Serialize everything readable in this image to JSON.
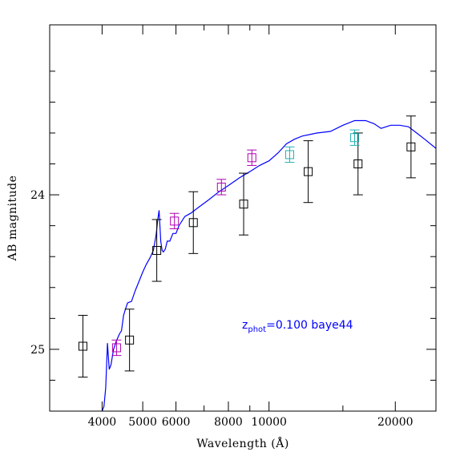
{
  "chart_data": {
    "type": "scatter",
    "title": "",
    "xlabel": "Wavelength (Å)",
    "ylabel": "AB magnitude",
    "x_scale": "log",
    "y_inverted": true,
    "xlim": [
      3000,
      25000
    ],
    "ylim": [
      25.4,
      22.9
    ],
    "x_tick_labels": [
      "4000",
      "5000",
      "6000",
      "8000",
      "10000",
      "20000"
    ],
    "x_tick_values": [
      4000,
      5000,
      6000,
      8000,
      10000,
      20000
    ],
    "x_minor_ticks": [
      3000,
      7000,
      9000,
      15000
    ],
    "y_tick_labels": [
      "24",
      "25"
    ],
    "y_tick_values": [
      24,
      25
    ],
    "y_minor_ticks": [
      23.2,
      23.4,
      23.6,
      23.8,
      24.2,
      24.4,
      24.6,
      24.8,
      25.2
    ],
    "grid": false,
    "annotation": {
      "z_symbol": "z",
      "subscript": "phot",
      "text": "=0.100 baye44",
      "color": "#0000ff"
    },
    "series": [
      {
        "kind": "model",
        "color": "#0000ff",
        "points": [
          [
            3900,
            25.49
          ],
          [
            3960,
            25.42
          ],
          [
            4000,
            25.4
          ],
          [
            4040,
            25.37
          ],
          [
            4080,
            25.25
          ],
          [
            4120,
            24.96
          ],
          [
            4160,
            25.13
          ],
          [
            4200,
            25.1
          ],
          [
            4260,
            25.0
          ],
          [
            4320,
            24.95
          ],
          [
            4400,
            24.9
          ],
          [
            4450,
            24.88
          ],
          [
            4500,
            24.78
          ],
          [
            4560,
            24.73
          ],
          [
            4600,
            24.7
          ],
          [
            4700,
            24.69
          ],
          [
            4800,
            24.62
          ],
          [
            4900,
            24.56
          ],
          [
            5000,
            24.5
          ],
          [
            5100,
            24.45
          ],
          [
            5200,
            24.41
          ],
          [
            5300,
            24.36
          ],
          [
            5380,
            24.26
          ],
          [
            5430,
            24.16
          ],
          [
            5470,
            24.1
          ],
          [
            5520,
            24.3
          ],
          [
            5560,
            24.36
          ],
          [
            5600,
            24.37
          ],
          [
            5660,
            24.35
          ],
          [
            5720,
            24.3
          ],
          [
            5800,
            24.3
          ],
          [
            5900,
            24.25
          ],
          [
            6000,
            24.25
          ],
          [
            6100,
            24.2
          ],
          [
            6300,
            24.14
          ],
          [
            6500,
            24.12
          ],
          [
            6800,
            24.08
          ],
          [
            7200,
            24.03
          ],
          [
            7600,
            23.98
          ],
          [
            8000,
            23.94
          ],
          [
            8500,
            23.89
          ],
          [
            9000,
            23.85
          ],
          [
            9500,
            23.81
          ],
          [
            10000,
            23.78
          ],
          [
            10500,
            23.73
          ],
          [
            11000,
            23.67
          ],
          [
            11500,
            23.64
          ],
          [
            12000,
            23.62
          ],
          [
            13000,
            23.6
          ],
          [
            14000,
            23.59
          ],
          [
            15000,
            23.55
          ],
          [
            16000,
            23.52
          ],
          [
            17000,
            23.52
          ],
          [
            17800,
            23.54
          ],
          [
            18500,
            23.57
          ],
          [
            19500,
            23.55
          ],
          [
            20500,
            23.55
          ],
          [
            21500,
            23.56
          ],
          [
            22500,
            23.6
          ],
          [
            23500,
            23.64
          ],
          [
            25000,
            23.7
          ]
        ]
      },
      {
        "kind": "observed",
        "color": "#000000",
        "points": [
          {
            "x": 3600,
            "y": 24.98,
            "err": 0.2
          },
          {
            "x": 4650,
            "y": 24.94,
            "err": 0.2
          },
          {
            "x": 5400,
            "y": 24.36,
            "err": 0.2
          },
          {
            "x": 6600,
            "y": 24.18,
            "err": 0.2
          },
          {
            "x": 8700,
            "y": 24.06,
            "err": 0.2
          },
          {
            "x": 12400,
            "y": 23.85,
            "err": 0.2
          },
          {
            "x": 16300,
            "y": 23.8,
            "err": 0.2
          },
          {
            "x": 21800,
            "y": 23.69,
            "err": 0.2
          }
        ]
      },
      {
        "kind": "photometry-magenta",
        "color": "#b000b0",
        "points": [
          {
            "x": 4330,
            "y": 24.99,
            "err": 0.05
          },
          {
            "x": 5950,
            "y": 24.17,
            "err": 0.05
          },
          {
            "x": 7700,
            "y": 23.95,
            "err": 0.05
          },
          {
            "x": 9100,
            "y": 23.76,
            "err": 0.05
          }
        ]
      },
      {
        "kind": "photometry-cyan",
        "color": "#20b0b0",
        "points": [
          {
            "x": 11200,
            "y": 23.74,
            "err": 0.05
          },
          {
            "x": 16000,
            "y": 23.63,
            "err": 0.05
          }
        ]
      }
    ]
  }
}
